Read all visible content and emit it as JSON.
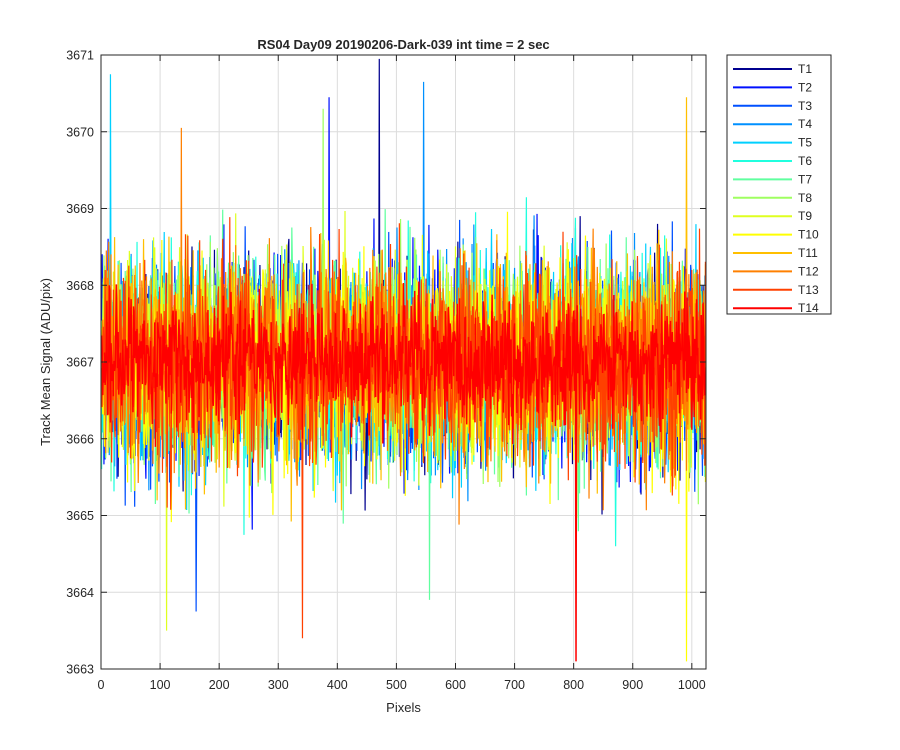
{
  "chart_data": {
    "type": "line",
    "title": "RS04 Day09 20190206-Dark-039 int time = 2 sec",
    "xlabel": "Pixels",
    "ylabel": "Track Mean Signal (ADU/pix)",
    "xlim": [
      0,
      1024
    ],
    "ylim": [
      3663,
      3671
    ],
    "xticks": [
      0,
      100,
      200,
      300,
      400,
      500,
      600,
      700,
      800,
      900,
      1000
    ],
    "yticks": [
      3663,
      3664,
      3665,
      3666,
      3667,
      3668,
      3669,
      3670,
      3671
    ],
    "grid": true,
    "legend_position": "outside-top-right",
    "x_points": 1024,
    "series": [
      {
        "name": "T1",
        "color": "#00008f",
        "mean": 3667.0,
        "std": 0.9,
        "peak": [
          470,
          3670.95
        ]
      },
      {
        "name": "T2",
        "color": "#0010ff",
        "mean": 3667.0,
        "std": 0.9,
        "peak": [
          385,
          3670.45
        ]
      },
      {
        "name": "T3",
        "color": "#0050ff",
        "mean": 3667.0,
        "std": 0.9,
        "peak": [
          160,
          3663.75
        ]
      },
      {
        "name": "T4",
        "color": "#0090ff",
        "mean": 3667.0,
        "std": 0.9,
        "peak": [
          545,
          3670.65
        ]
      },
      {
        "name": "T5",
        "color": "#00d0ff",
        "mean": 3667.0,
        "std": 0.9,
        "peak": [
          15,
          3670.75
        ]
      },
      {
        "name": "T6",
        "color": "#20ffdf",
        "mean": 3667.0,
        "std": 0.9,
        "peak": [
          870,
          3664.6
        ]
      },
      {
        "name": "T7",
        "color": "#60ff9f",
        "mean": 3667.0,
        "std": 0.9,
        "peak": [
          555,
          3663.9
        ]
      },
      {
        "name": "T8",
        "color": "#9fff60",
        "mean": 3667.0,
        "std": 0.9,
        "peak": [
          375,
          3670.3
        ]
      },
      {
        "name": "T9",
        "color": "#dfff20",
        "mean": 3667.0,
        "std": 0.9,
        "peak": [
          110,
          3663.5
        ]
      },
      {
        "name": "T10",
        "color": "#ffff00",
        "mean": 3667.0,
        "std": 0.9,
        "peak": [
          990,
          3663.1
        ]
      },
      {
        "name": "T11",
        "color": "#ffbf00",
        "mean": 3667.0,
        "std": 0.9,
        "peak": [
          990,
          3670.45
        ]
      },
      {
        "name": "T12",
        "color": "#ff8000",
        "mean": 3667.0,
        "std": 0.9,
        "peak": [
          135,
          3670.05
        ]
      },
      {
        "name": "T13",
        "color": "#ff4000",
        "mean": 3667.0,
        "std": 0.9,
        "peak": [
          340,
          3663.4
        ]
      },
      {
        "name": "T14",
        "color": "#ff0000",
        "mean": 3667.0,
        "std": 0.55,
        "peak": [
          803,
          3663.1
        ]
      }
    ]
  }
}
